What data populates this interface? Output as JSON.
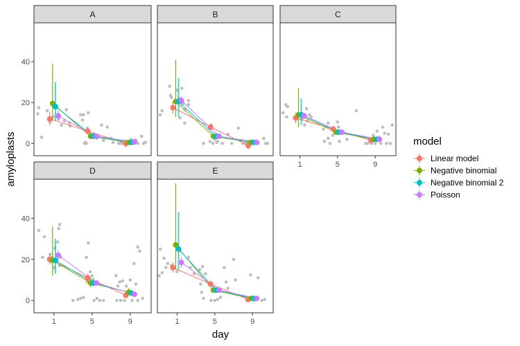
{
  "chart_data": {
    "type": "scatter",
    "title": "",
    "xlabel": "day",
    "ylabel": "amyloplasts",
    "x_ticks": [
      1,
      5,
      9
    ],
    "y_ticks": [
      0,
      20,
      40
    ],
    "xlim": [
      -1.1,
      11.2
    ],
    "ylim": [
      -6,
      59
    ],
    "grid": false,
    "legend": {
      "title": "model",
      "position": "right",
      "entries": [
        {
          "name": "Linear model",
          "color": "#F8766D"
        },
        {
          "name": "Negative binomial",
          "color": "#7CAE00"
        },
        {
          "name": "Negative binomial 2",
          "color": "#00BFC4"
        },
        {
          "name": "Poisson",
          "color": "#C77CFF"
        }
      ]
    },
    "raw_point_color": "#BEBEBE",
    "days": [
      1,
      5,
      9
    ],
    "panels": [
      {
        "label": "A",
        "series": [
          {
            "name": "Linear model",
            "values": [
              12,
              6,
              0
            ],
            "lower": [
              9,
              4.5,
              -2
            ],
            "upper": [
              15.5,
              7.5,
              2
            ]
          },
          {
            "name": "Negative binomial",
            "values": [
              19.5,
              3.5,
              0.5
            ],
            "lower": [
              11,
              2.5,
              0.2
            ],
            "upper": [
              39,
              5,
              1
            ]
          },
          {
            "name": "Negative binomial 2",
            "values": [
              18,
              3.5,
              0.5
            ],
            "lower": [
              11,
              2.5,
              0.2
            ],
            "upper": [
              30,
              5,
              1
            ]
          },
          {
            "name": "Poisson",
            "values": [
              13.5,
              3.5,
              0.8
            ],
            "lower": [
              11,
              2.8,
              0.4
            ],
            "upper": [
              16,
              4.2,
              1.2
            ]
          }
        ],
        "raw": [
          [
            -0.6,
            17.5
          ],
          [
            -0.7,
            14.5
          ],
          [
            -0.3,
            3
          ],
          [
            0.3,
            16
          ],
          [
            0.6,
            10.5
          ],
          [
            0.9,
            13
          ],
          [
            1.5,
            12
          ],
          [
            1.8,
            9
          ],
          [
            2.3,
            16.5
          ],
          [
            2.1,
            11
          ],
          [
            2.6,
            10
          ],
          [
            2.7,
            8.5
          ],
          [
            3.8,
            14
          ],
          [
            4.1,
            14
          ],
          [
            4.0,
            11.5
          ],
          [
            4.6,
            15
          ],
          [
            4.2,
            0
          ],
          [
            4.3,
            0.5
          ],
          [
            4.4,
            0
          ],
          [
            4.5,
            7.5
          ],
          [
            5.5,
            2.5
          ],
          [
            6.0,
            9
          ],
          [
            6.2,
            1.5
          ],
          [
            6.6,
            8
          ],
          [
            7.0,
            2.5
          ],
          [
            7.2,
            0.5
          ],
          [
            7.8,
            0
          ],
          [
            8.0,
            0
          ],
          [
            8.2,
            0
          ],
          [
            8.4,
            0
          ],
          [
            8.6,
            0
          ],
          [
            8.8,
            0.5
          ],
          [
            9.1,
            2
          ],
          [
            9.4,
            0
          ],
          [
            9.6,
            1.5
          ],
          [
            9.8,
            0
          ],
          [
            10.2,
            3.5
          ],
          [
            10.4,
            0
          ],
          [
            10.6,
            0.5
          ]
        ]
      },
      {
        "label": "B",
        "series": [
          {
            "name": "Linear model",
            "values": [
              17.5,
              8,
              -1
            ],
            "lower": [
              14.5,
              6.5,
              -3
            ],
            "upper": [
              20.5,
              9.5,
              1
            ]
          },
          {
            "name": "Negative binomial",
            "values": [
              20.5,
              3.5,
              0.5
            ],
            "lower": [
              13,
              2.5,
              0.2
            ],
            "upper": [
              41,
              5,
              1
            ]
          },
          {
            "name": "Negative binomial 2",
            "values": [
              20.5,
              3.5,
              0.5
            ],
            "lower": [
              13,
              2.5,
              0.2
            ],
            "upper": [
              32,
              5,
              1
            ]
          },
          {
            "name": "Poisson",
            "values": [
              21,
              3.5,
              0.5
            ],
            "lower": [
              18.5,
              2.8,
              0.3
            ],
            "upper": [
              23,
              4.2,
              0.8
            ]
          }
        ],
        "raw": [
          [
            0.2,
            28
          ],
          [
            1.0,
            26
          ],
          [
            1.5,
            27
          ],
          [
            0.3,
            23.5
          ],
          [
            0.4,
            22.5
          ],
          [
            1.2,
            22
          ],
          [
            1.6,
            19.5
          ],
          [
            1.4,
            20.5
          ],
          [
            2.2,
            21
          ],
          [
            2.2,
            19
          ],
          [
            1.8,
            16.5
          ],
          [
            -0.8,
            14
          ],
          [
            -0.6,
            16
          ],
          [
            1.3,
            12.5
          ],
          [
            1.8,
            10
          ],
          [
            4.6,
            9
          ],
          [
            6.4,
            4.5
          ],
          [
            7.5,
            7.5
          ],
          [
            4.5,
            1
          ],
          [
            4.8,
            0
          ],
          [
            5.0,
            2
          ],
          [
            5.3,
            1
          ],
          [
            5.6,
            3
          ],
          [
            5.8,
            0
          ],
          [
            5.2,
            0.5
          ],
          [
            3.8,
            0
          ],
          [
            6.8,
            0
          ],
          [
            7.8,
            1.5
          ],
          [
            8.0,
            0
          ],
          [
            8.3,
            0
          ],
          [
            8.5,
            1
          ],
          [
            9.2,
            0
          ],
          [
            9.6,
            0
          ],
          [
            10.2,
            2.5
          ],
          [
            10.4,
            0
          ],
          [
            10.6,
            0
          ]
        ]
      },
      {
        "label": "C",
        "series": [
          {
            "name": "Linear model",
            "values": [
              12.5,
              7,
              1.5
            ],
            "lower": [
              10,
              5.5,
              0
            ],
            "upper": [
              15,
              8.5,
              3
            ]
          },
          {
            "name": "Negative binomial",
            "values": [
              14,
              5.5,
              2
            ],
            "lower": [
              8,
              4.5,
              1.5
            ],
            "upper": [
              27,
              6.8,
              2.7
            ]
          },
          {
            "name": "Negative binomial 2",
            "values": [
              14,
              5.5,
              2
            ],
            "lower": [
              9,
              4.5,
              1.5
            ],
            "upper": [
              22,
              6.8,
              2.7
            ]
          },
          {
            "name": "Poisson",
            "values": [
              13.5,
              5.5,
              2
            ],
            "lower": [
              12,
              4.8,
              1.6
            ],
            "upper": [
              15,
              6.2,
              2.4
            ]
          }
        ],
        "raw": [
          [
            -0.5,
            19
          ],
          [
            -0.3,
            18
          ],
          [
            -0.8,
            15
          ],
          [
            -0.4,
            13
          ],
          [
            1.7,
            17
          ],
          [
            0.6,
            12
          ],
          [
            1.2,
            12
          ],
          [
            2.0,
            14
          ],
          [
            2.2,
            13
          ],
          [
            1.8,
            11
          ],
          [
            1.5,
            9
          ],
          [
            4.0,
            10
          ],
          [
            3.5,
            7
          ],
          [
            5.0,
            10.5
          ],
          [
            5.1,
            8
          ],
          [
            4.8,
            6
          ],
          [
            4.5,
            4
          ],
          [
            4.0,
            2.5
          ],
          [
            3.6,
            1
          ],
          [
            4.2,
            0
          ],
          [
            5.2,
            1
          ],
          [
            6.0,
            2
          ],
          [
            7.0,
            16
          ],
          [
            8.0,
            0
          ],
          [
            8.2,
            0
          ],
          [
            8.6,
            0
          ],
          [
            9.2,
            6
          ],
          [
            9.8,
            8
          ],
          [
            10.4,
            4.5
          ],
          [
            8.8,
            4
          ],
          [
            9.4,
            3
          ],
          [
            10.0,
            5
          ],
          [
            10.8,
            9
          ],
          [
            9.0,
            0
          ],
          [
            9.6,
            0
          ],
          [
            10.2,
            0
          ],
          [
            10.6,
            0
          ]
        ]
      },
      {
        "label": "D",
        "series": [
          {
            "name": "Linear model",
            "values": [
              20,
              11,
              2.5
            ],
            "lower": [
              17.5,
              9,
              1
            ],
            "upper": [
              22.5,
              13,
              4.5
            ]
          },
          {
            "name": "Negative binomial",
            "values": [
              19.5,
              8.5,
              4
            ],
            "lower": [
              12,
              6.5,
              2.5
            ],
            "upper": [
              36,
              11,
              6
            ]
          },
          {
            "name": "Negative binomial 2",
            "values": [
              19.5,
              8.5,
              3.5
            ],
            "lower": [
              13,
              7,
              2.5
            ],
            "upper": [
              30,
              11,
              5
            ]
          },
          {
            "name": "Poisson",
            "values": [
              22,
              8.5,
              3
            ],
            "lower": [
              19.5,
              7.5,
              2.4
            ],
            "upper": [
              24.5,
              9.5,
              3.6
            ]
          }
        ],
        "raw": [
          [
            -0.6,
            34
          ],
          [
            0.0,
            31
          ],
          [
            -0.2,
            21
          ],
          [
            0.6,
            22.5
          ],
          [
            0.8,
            21
          ],
          [
            1.1,
            25.5
          ],
          [
            1.0,
            16
          ],
          [
            1.5,
            35
          ],
          [
            1.6,
            37
          ],
          [
            1.4,
            28.5
          ],
          [
            1.7,
            21
          ],
          [
            1.6,
            17
          ],
          [
            4.6,
            28
          ],
          [
            4.4,
            21
          ],
          [
            4.8,
            14
          ],
          [
            5.0,
            12
          ],
          [
            4.5,
            9
          ],
          [
            3.0,
            0
          ],
          [
            3.5,
            0.5
          ],
          [
            3.8,
            1
          ],
          [
            4.1,
            1.5
          ],
          [
            5.2,
            0
          ],
          [
            5.5,
            1
          ],
          [
            5.8,
            0
          ],
          [
            6.2,
            0
          ],
          [
            7.5,
            12
          ],
          [
            7.7,
            7
          ],
          [
            7.9,
            9
          ],
          [
            8.2,
            9.5
          ],
          [
            8.6,
            7
          ],
          [
            8.8,
            4
          ],
          [
            9.0,
            10
          ],
          [
            9.4,
            18
          ],
          [
            9.6,
            8
          ],
          [
            9.8,
            26
          ],
          [
            10.0,
            24
          ],
          [
            7.6,
            0
          ],
          [
            8.0,
            0
          ],
          [
            8.4,
            0
          ],
          [
            9.2,
            0
          ],
          [
            9.8,
            0
          ],
          [
            10.3,
            1
          ]
        ]
      },
      {
        "label": "E",
        "series": [
          {
            "name": "Linear model",
            "values": [
              16,
              8,
              0.5
            ],
            "lower": [
              13.5,
              6.5,
              -1
            ],
            "upper": [
              18.5,
              9.5,
              2
            ]
          },
          {
            "name": "Negative binomial",
            "values": [
              27,
              5,
              1
            ],
            "lower": [
              15,
              3.8,
              0.6
            ],
            "upper": [
              57,
              6.5,
              1.5
            ]
          },
          {
            "name": "Negative binomial 2",
            "values": [
              25,
              5,
              1
            ],
            "lower": [
              15,
              3.8,
              0.6
            ],
            "upper": [
              43,
              6.5,
              1.5
            ]
          },
          {
            "name": "Poisson",
            "values": [
              18.5,
              5,
              1
            ],
            "lower": [
              16,
              4.3,
              0.7
            ],
            "upper": [
              21,
              5.7,
              1.3
            ]
          }
        ],
        "raw": [
          [
            -0.8,
            25
          ],
          [
            -0.4,
            20.5
          ],
          [
            -0.2,
            16
          ],
          [
            0.0,
            18
          ],
          [
            0.4,
            17
          ],
          [
            -0.6,
            13.5
          ],
          [
            -0.9,
            12
          ],
          [
            0.6,
            16.5
          ],
          [
            1.0,
            14
          ],
          [
            2.2,
            21
          ],
          [
            2.4,
            16
          ],
          [
            2.8,
            13
          ],
          [
            3.4,
            15
          ],
          [
            3.7,
            16.5
          ],
          [
            4.0,
            13
          ],
          [
            3.5,
            8
          ],
          [
            3.6,
            4
          ],
          [
            3.8,
            1
          ],
          [
            4.6,
            0
          ],
          [
            5.0,
            0
          ],
          [
            5.3,
            0.5
          ],
          [
            5.6,
            1.5
          ],
          [
            6.0,
            16
          ],
          [
            6.2,
            9
          ],
          [
            6.4,
            6
          ],
          [
            7.0,
            20
          ],
          [
            7.2,
            10
          ],
          [
            8.0,
            2
          ],
          [
            8.4,
            0
          ],
          [
            8.8,
            12.5
          ],
          [
            9.6,
            11
          ],
          [
            9.2,
            0
          ],
          [
            10.0,
            0
          ],
          [
            10.3,
            0.5
          ]
        ]
      }
    ]
  }
}
